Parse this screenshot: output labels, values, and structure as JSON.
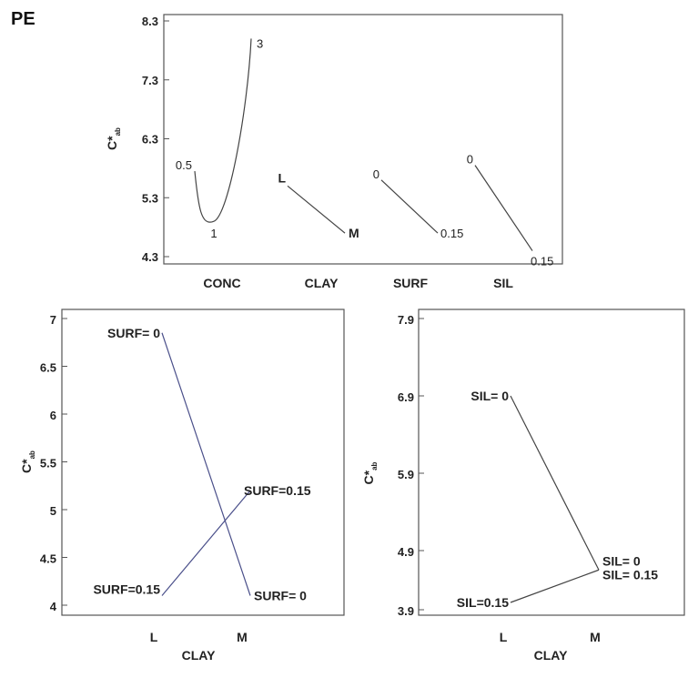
{
  "corner_label": "PE",
  "chart_data": [
    {
      "type": "line",
      "ylabel": "C*ab",
      "ylim": [
        4.3,
        8.3
      ],
      "yticks": [
        "4.3",
        "5.3",
        "6.3",
        "7.3",
        "8.3"
      ],
      "categories": [
        "CONC",
        "CLAY",
        "SURF",
        "SIL"
      ],
      "series": [
        {
          "name": "CONC",
          "x": [
            0.5,
            1,
            3
          ],
          "y": [
            5.75,
            4.9,
            8.0
          ],
          "labels": [
            "0.5",
            "1",
            "3"
          ]
        },
        {
          "name": "CLAY",
          "x": [
            "L",
            "M"
          ],
          "y": [
            5.5,
            4.7
          ],
          "labels": [
            "L",
            "M"
          ]
        },
        {
          "name": "SURF",
          "x": [
            0,
            0.15
          ],
          "y": [
            5.6,
            4.7
          ],
          "labels": [
            "0",
            "0.15"
          ]
        },
        {
          "name": "SIL",
          "x": [
            0,
            0.15
          ],
          "y": [
            5.85,
            4.4
          ],
          "labels": [
            "0",
            "0.15"
          ]
        }
      ]
    },
    {
      "type": "line",
      "xlabel": "CLAY",
      "ylabel": "C*ab",
      "ylim": [
        4.0,
        7.0
      ],
      "yticks": [
        "4",
        "4.5",
        "5",
        "5.5",
        "6",
        "6.5",
        "7"
      ],
      "categories": [
        "L",
        "M"
      ],
      "series": [
        {
          "values": [
            6.85,
            4.1
          ],
          "labels": [
            "SURF= 0",
            "SURF= 0"
          ]
        },
        {
          "values": [
            4.1,
            5.2
          ],
          "labels": [
            "SURF=0.15",
            "SURF=0.15"
          ]
        }
      ]
    },
    {
      "type": "line",
      "xlabel": "CLAY",
      "ylabel": "C*ab",
      "ylim": [
        3.9,
        7.9
      ],
      "yticks": [
        "3.9",
        "4.9",
        "5.9",
        "6.9",
        "7.9"
      ],
      "categories": [
        "L",
        "M"
      ],
      "series": [
        {
          "values": [
            6.9,
            4.65
          ],
          "labels": [
            "SIL= 0",
            "SIL= 0"
          ]
        },
        {
          "values": [
            4.0,
            4.65
          ],
          "labels": [
            "SIL=0.15",
            "SIL= 0.15"
          ]
        }
      ]
    }
  ]
}
